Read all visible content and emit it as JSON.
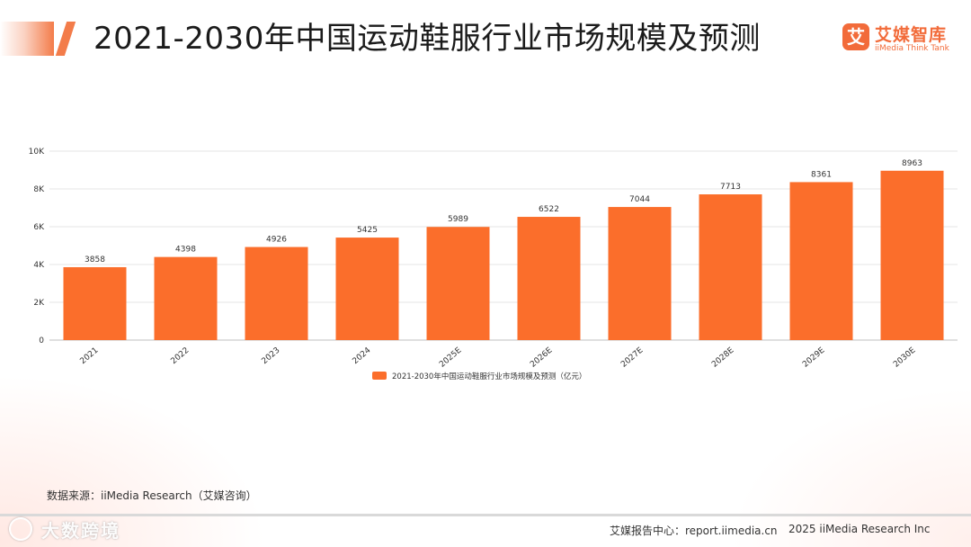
{
  "header": {
    "title": "2021-2030年中国运动鞋服行业市场规模及预测",
    "logo_mark": "艾",
    "logo_cn": "艾媒智库",
    "logo_en": "iiMedia Think Tank"
  },
  "chart_data": {
    "type": "bar",
    "title": "2021-2030年中国运动鞋服行业市场规模及预测",
    "categories": [
      "2021",
      "2022",
      "2023",
      "2024",
      "2025E",
      "2026E",
      "2027E",
      "2028E",
      "2029E",
      "2030E"
    ],
    "series": [
      {
        "name": "2021-2030年中国运动鞋服行业市场规模及预测（亿元）",
        "values": [
          3858,
          4398,
          4926,
          5425,
          5989,
          6522,
          7044,
          7713,
          8361,
          8963
        ]
      }
    ],
    "y_ticks": [
      "0",
      "2K",
      "4K",
      "6K",
      "8K",
      "10K"
    ],
    "ylim": [
      0,
      10000
    ],
    "grid": true,
    "legend_position": "bottom",
    "xlabel": "",
    "ylabel": "",
    "colors": {
      "bar": "#fb6e2b",
      "grid": "#e6e6e6",
      "axis": "#bfbfbf",
      "text": "#333333"
    }
  },
  "footer": {
    "source": "数据来源：iiMedia Research（艾媒咨询）",
    "report_center": "艾媒报告中心：report.iimedia.cn",
    "copyright": "2025 iiMedia Research Inc",
    "watermark": "大数跨境"
  }
}
